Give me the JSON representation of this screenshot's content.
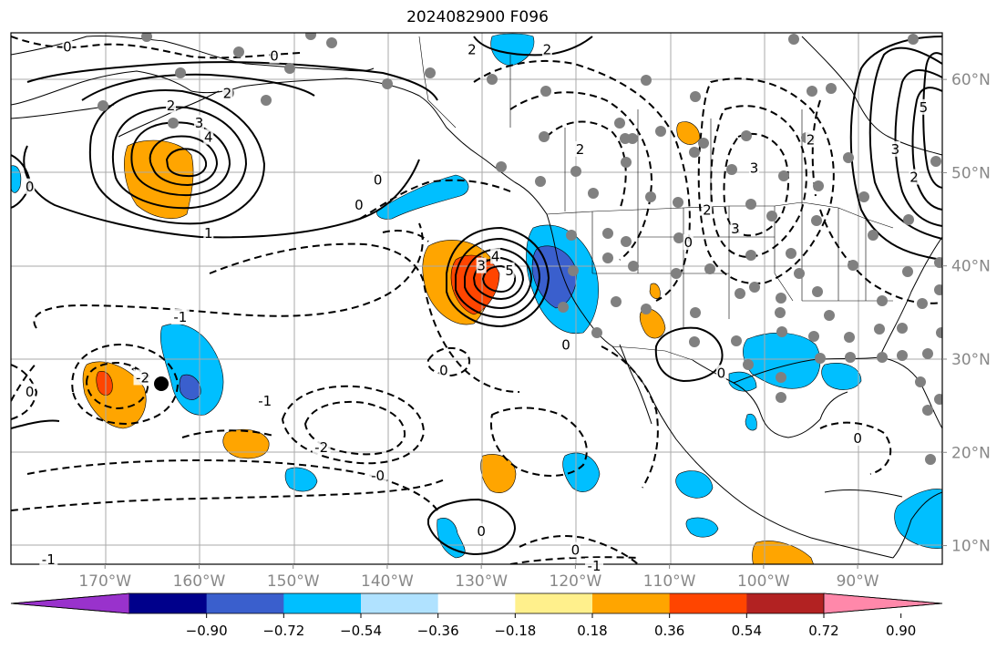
{
  "title": "2024082900 F096",
  "map": {
    "projection": "PlateCarree",
    "lon_range": [
      -180,
      -81
    ],
    "lat_range": [
      8,
      65
    ],
    "lon_ticks": [
      {
        "lon": -170,
        "label": "170°W"
      },
      {
        "lon": -160,
        "label": "160°W"
      },
      {
        "lon": -150,
        "label": "150°W"
      },
      {
        "lon": -140,
        "label": "140°W"
      },
      {
        "lon": -130,
        "label": "130°W"
      },
      {
        "lon": -120,
        "label": "120°W"
      },
      {
        "lon": -110,
        "label": "110°W"
      },
      {
        "lon": -100,
        "label": "100°W"
      },
      {
        "lon": -90,
        "label": "90°W"
      }
    ],
    "lat_ticks": [
      {
        "lat": 60,
        "label": "60°N"
      },
      {
        "lat": 50,
        "label": "50°N"
      },
      {
        "lat": 40,
        "label": "40°N"
      },
      {
        "lat": 30,
        "label": "30°N"
      },
      {
        "lat": 20,
        "label": "20°N"
      },
      {
        "lat": 10,
        "label": "10°N"
      }
    ],
    "gridlines": true,
    "tick_color": "#888888"
  },
  "colorbar": {
    "ticks": [
      "−0.90",
      "−0.72",
      "−0.54",
      "−0.36",
      "−0.18",
      "0.18",
      "0.36",
      "0.54",
      "0.72",
      "0.90"
    ],
    "colors": [
      "#9932cc",
      "#00008b",
      "#3a5fcd",
      "#00bfff",
      "#b0e2ff",
      "#ffffff",
      "#fff08c",
      "#ffa500",
      "#ff4500",
      "#b22222",
      "#ff88aa"
    ],
    "extend": "both"
  },
  "contour_labels": [
    {
      "text": "0",
      "lon": -174,
      "lat": 63.5
    },
    {
      "text": "0",
      "lon": -152,
      "lat": 62.5
    },
    {
      "text": "2",
      "lon": -163,
      "lat": 57.2
    },
    {
      "text": "2",
      "lon": -157,
      "lat": 58.5
    },
    {
      "text": "3",
      "lon": -160,
      "lat": 55.3
    },
    {
      "text": "4",
      "lon": -159,
      "lat": 53.8
    },
    {
      "text": "1",
      "lon": -159,
      "lat": 43.5
    },
    {
      "text": "0",
      "lon": -178,
      "lat": 48.5
    },
    {
      "text": "0",
      "lon": -143,
      "lat": 46.5
    },
    {
      "text": "0",
      "lon": -141,
      "lat": 49.2
    },
    {
      "text": "2",
      "lon": -131,
      "lat": 63.2
    },
    {
      "text": "2",
      "lon": -123,
      "lat": 63.2
    },
    {
      "text": "3",
      "lon": -130,
      "lat": 40
    },
    {
      "text": "4",
      "lon": -128.5,
      "lat": 41
    },
    {
      "text": "5",
      "lon": -127,
      "lat": 39.5
    },
    {
      "text": "0",
      "lon": -121,
      "lat": 31.5
    },
    {
      "text": "-1",
      "lon": -162,
      "lat": 34.5
    },
    {
      "text": "-1",
      "lon": -153,
      "lat": 25.5
    },
    {
      "text": "-2",
      "lon": -166,
      "lat": 28
    },
    {
      "text": "0",
      "lon": -178,
      "lat": 26.5
    },
    {
      "text": "-2",
      "lon": -147,
      "lat": 20.5
    },
    {
      "text": "0",
      "lon": -134,
      "lat": 28.8
    },
    {
      "text": "-0",
      "lon": -141,
      "lat": 17.5
    },
    {
      "text": "0",
      "lon": -130,
      "lat": 11.5
    },
    {
      "text": "0",
      "lon": -120,
      "lat": 9.5
    },
    {
      "text": "-1",
      "lon": -118,
      "lat": 7.8
    },
    {
      "text": "-1",
      "lon": -176,
      "lat": 8.5
    },
    {
      "text": "0",
      "lon": -104.5,
      "lat": 28.5
    },
    {
      "text": "0",
      "lon": -90,
      "lat": 21.5
    },
    {
      "text": "0",
      "lon": -108,
      "lat": 42.5
    },
    {
      "text": "3",
      "lon": -103,
      "lat": 44
    },
    {
      "text": "2",
      "lon": -106,
      "lat": 46
    },
    {
      "text": "2",
      "lon": -95,
      "lat": 53.5
    },
    {
      "text": "3",
      "lon": -101,
      "lat": 50.5
    },
    {
      "text": "2",
      "lon": -119.5,
      "lat": 52.5
    },
    {
      "text": "5",
      "lon": -83,
      "lat": 57
    },
    {
      "text": "3",
      "lon": -86,
      "lat": 52.5
    },
    {
      "text": "2",
      "lon": -84,
      "lat": 49.5
    }
  ]
}
